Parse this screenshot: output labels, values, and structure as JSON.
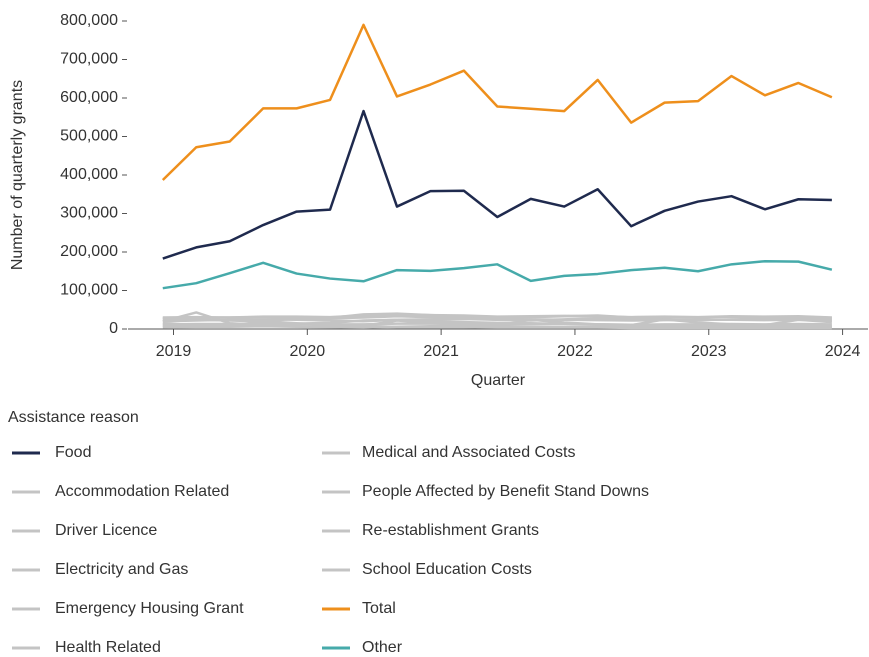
{
  "chart_data": {
    "type": "line",
    "x_label": "Quarter",
    "y_label": "Number of quarterly grants",
    "legend_title": "Assistance reason",
    "x": [
      2018.92,
      2019.17,
      2019.42,
      2019.67,
      2019.92,
      2020.17,
      2020.42,
      2020.67,
      2020.92,
      2021.17,
      2021.42,
      2021.67,
      2021.92,
      2022.17,
      2022.42,
      2022.67,
      2022.92,
      2023.17,
      2023.42,
      2023.67,
      2023.92
    ],
    "xlim": [
      2018.66,
      2024.19
    ],
    "xticks": [
      2019,
      2020,
      2021,
      2022,
      2023,
      2024
    ],
    "ylim": [
      0,
      800000
    ],
    "yticks": [
      0,
      {
        "value": 100000,
        "label": "100,000"
      },
      {
        "value": 200000,
        "label": "200,000"
      },
      {
        "value": 300000,
        "label": "300,000"
      },
      {
        "value": 400000,
        "label": "400,000"
      },
      {
        "value": 500000,
        "label": "500,000"
      },
      {
        "value": 600000,
        "label": "600,000"
      },
      {
        "value": 700000,
        "label": "700,000"
      },
      {
        "value": 800000,
        "label": "800,000"
      }
    ],
    "series": [
      {
        "name": "Food",
        "color": "#1f2a4e",
        "values": [
          183000,
          212000,
          228000,
          270000,
          305000,
          310000,
          566000,
          318000,
          358000,
          359000,
          291000,
          338000,
          318000,
          363000,
          267000,
          307000,
          331000,
          345000,
          311000,
          337000,
          335000
        ]
      },
      {
        "name": "Accommodation Related",
        "color": "#c4c4c4",
        "values": [
          28000,
          29000,
          30000,
          31000,
          30000,
          29000,
          38000,
          40000,
          36000,
          33000,
          30000,
          31000,
          33000,
          35000,
          30000,
          31000,
          30000,
          32000,
          31000,
          32000,
          29000
        ]
      },
      {
        "name": "Driver Licence",
        "color": "#c4c4c4",
        "values": [
          5000,
          6000,
          6000,
          7000,
          6000,
          5000,
          4000,
          6000,
          7000,
          7000,
          6000,
          6000,
          5000,
          6000,
          5000,
          6000,
          6000,
          6000,
          5000,
          6000,
          5000
        ]
      },
      {
        "name": "Electricity and Gas",
        "color": "#c4c4c4",
        "values": [
          25000,
          24000,
          22000,
          20000,
          27000,
          28000,
          30000,
          33000,
          31000,
          29000,
          24000,
          22000,
          25000,
          28000,
          26000,
          24000,
          23000,
          25000,
          26000,
          27000,
          24000
        ]
      },
      {
        "name": "Emergency Housing Grant",
        "color": "#c4c4c4",
        "values": [
          8000,
          9000,
          10000,
          12000,
          14000,
          16000,
          22000,
          24000,
          20000,
          18000,
          16000,
          15000,
          13000,
          12000,
          11000,
          10000,
          10000,
          9000,
          9000,
          8000,
          8000
        ]
      },
      {
        "name": "Health Related",
        "color": "#c4c4c4",
        "values": [
          12000,
          13000,
          13000,
          14000,
          13000,
          12000,
          12000,
          14000,
          14000,
          13000,
          12000,
          13000,
          13000,
          12000,
          11000,
          12000,
          12000,
          13000,
          12000,
          13000,
          12000
        ]
      },
      {
        "name": "Medical and Associated Costs",
        "color": "#c4c4c4",
        "values": [
          20000,
          22000,
          24000,
          25000,
          24000,
          22000,
          20000,
          24000,
          25000,
          26000,
          24000,
          25000,
          24000,
          23000,
          22000,
          23000,
          24000,
          24000,
          23000,
          24000,
          22000
        ]
      },
      {
        "name": "People Affected by Benefit Stand Downs",
        "color": "#c4c4c4",
        "values": [
          20000,
          43000,
          15000,
          10000,
          12000,
          10000,
          8000,
          5000,
          5000,
          5000,
          4000,
          4000,
          4000,
          4000,
          3000,
          3000,
          3000,
          3000,
          3000,
          3000,
          3000
        ]
      },
      {
        "name": "Re-establishment Grants",
        "color": "#c4c4c4",
        "values": [
          30000,
          31000,
          30000,
          32000,
          32000,
          31000,
          35000,
          38000,
          36000,
          35000,
          32000,
          33000,
          34000,
          33000,
          31000,
          32000,
          31000,
          33000,
          32000,
          33000,
          30000
        ]
      },
      {
        "name": "School Education Costs",
        "color": "#c4c4c4",
        "values": [
          15000,
          10000,
          8000,
          20000,
          15000,
          10000,
          8000,
          22000,
          16000,
          12000,
          9000,
          24000,
          17000,
          12000,
          10000,
          25000,
          17000,
          12000,
          10000,
          24000,
          18000
        ]
      },
      {
        "name": "Total",
        "color": "#ee8f1c",
        "values": [
          387000,
          472000,
          487000,
          573000,
          573000,
          595000,
          790000,
          604000,
          635000,
          671000,
          578000,
          572000,
          566000,
          647000,
          536000,
          588000,
          592000,
          657000,
          607000,
          639000,
          602000
        ]
      },
      {
        "name": "Other",
        "color": "#46aaaa",
        "values": [
          106000,
          119000,
          145000,
          172000,
          144000,
          131000,
          124000,
          153000,
          151000,
          158000,
          168000,
          125000,
          138000,
          143000,
          153000,
          159000,
          150000,
          168000,
          176000,
          175000,
          154000
        ]
      }
    ]
  }
}
